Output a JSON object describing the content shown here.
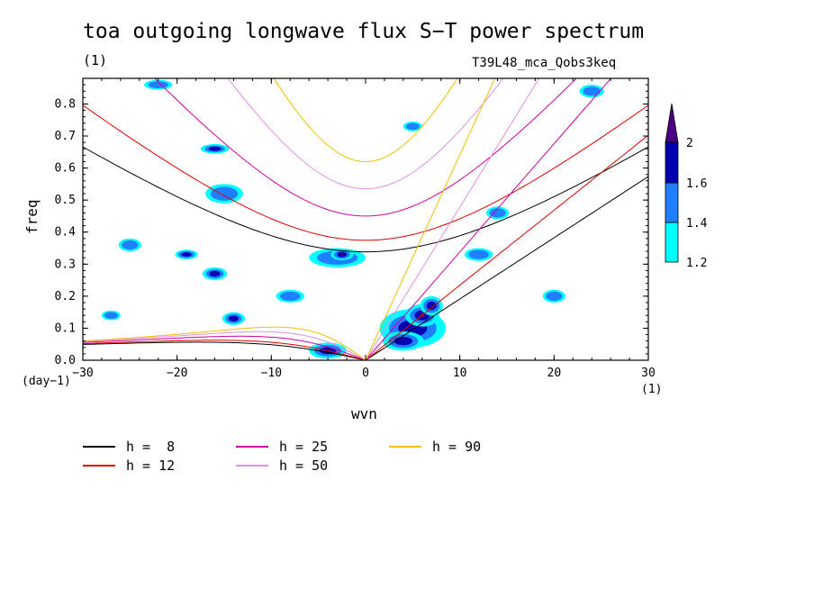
{
  "title": "toa outgoing longwave flux S−T power spectrum",
  "unit_label": "(1)",
  "run_label": "T39L48_mca_Qobs3keq",
  "y_unit_label": "(day−1)",
  "x_unit_label": "(1)",
  "chart_data": {
    "type": "heatmap",
    "xlabel": "wvn",
    "ylabel": "freq",
    "xlim": [
      -30,
      30
    ],
    "ylim": [
      0,
      0.88
    ],
    "xticks": [
      -30,
      -20,
      -10,
      0,
      10,
      20,
      30
    ],
    "xtick_labels": [
      "−30",
      "−20",
      "−10",
      "0",
      "10",
      "20",
      "30"
    ],
    "yticks": [
      0,
      0.1,
      0.2,
      0.3,
      0.4,
      0.5,
      0.6,
      0.7,
      0.8
    ],
    "ytick_labels": [
      "0.0",
      "0.1",
      "0.2",
      "0.3",
      "0.4",
      "0.5",
      "0.6",
      "0.7",
      "0.8"
    ],
    "colorbar": {
      "levels": [
        1.2,
        1.4,
        1.6,
        2
      ],
      "level_labels": [
        "1.2",
        "1.4",
        "1.6",
        "2"
      ],
      "colors": [
        "#00ffff",
        "#1f7fff",
        "#0000b0",
        "#4b0082"
      ]
    },
    "dispersion_curves": [
      {
        "name": "h =  8",
        "h": 8,
        "color": "#000000"
      },
      {
        "name": "h = 12",
        "h": 12,
        "color": "#e00000"
      },
      {
        "name": "h = 25",
        "h": 25,
        "color": "#d000a0"
      },
      {
        "name": "h = 50",
        "h": 50,
        "color": "#e090e0"
      },
      {
        "name": "h = 90",
        "h": 90,
        "color": "#f0c000"
      }
    ],
    "blobs": [
      {
        "x": 5,
        "y": 0.1,
        "rx": 3.5,
        "ry": 0.06,
        "level": 2
      },
      {
        "x": 6,
        "y": 0.14,
        "rx": 1.8,
        "ry": 0.035,
        "level": 3
      },
      {
        "x": 4,
        "y": 0.06,
        "rx": 2.2,
        "ry": 0.03,
        "level": 2
      },
      {
        "x": 7,
        "y": 0.17,
        "rx": 1.2,
        "ry": 0.03,
        "level": 2
      },
      {
        "x": -3,
        "y": 0.32,
        "rx": 3,
        "ry": 0.03,
        "level": 1
      },
      {
        "x": -2.5,
        "y": 0.33,
        "rx": 1.2,
        "ry": 0.018,
        "level": 3
      },
      {
        "x": -16,
        "y": 0.66,
        "rx": 1.5,
        "ry": 0.015,
        "level": 2
      },
      {
        "x": -15,
        "y": 0.52,
        "rx": 2,
        "ry": 0.03,
        "level": 1
      },
      {
        "x": -19,
        "y": 0.33,
        "rx": 1.2,
        "ry": 0.015,
        "level": 2
      },
      {
        "x": -16,
        "y": 0.27,
        "rx": 1.3,
        "ry": 0.02,
        "level": 2
      },
      {
        "x": -14,
        "y": 0.13,
        "rx": 1.2,
        "ry": 0.02,
        "level": 2
      },
      {
        "x": -4,
        "y": 0.03,
        "rx": 2,
        "ry": 0.025,
        "level": 2
      },
      {
        "x": 5,
        "y": 0.73,
        "rx": 1,
        "ry": 0.015,
        "level": 1
      },
      {
        "x": -25,
        "y": 0.36,
        "rx": 1.2,
        "ry": 0.02,
        "level": 1
      },
      {
        "x": 12,
        "y": 0.33,
        "rx": 1.5,
        "ry": 0.02,
        "level": 1
      },
      {
        "x": -22,
        "y": 0.86,
        "rx": 1.5,
        "ry": 0.015,
        "level": 1
      },
      {
        "x": 14,
        "y": 0.46,
        "rx": 1.2,
        "ry": 0.02,
        "level": 1
      },
      {
        "x": -8,
        "y": 0.2,
        "rx": 1.5,
        "ry": 0.02,
        "level": 1
      },
      {
        "x": 20,
        "y": 0.2,
        "rx": 1.2,
        "ry": 0.02,
        "level": 1
      },
      {
        "x": -27,
        "y": 0.14,
        "rx": 1,
        "ry": 0.015,
        "level": 1
      },
      {
        "x": 24,
        "y": 0.84,
        "rx": 1.3,
        "ry": 0.02,
        "level": 1
      }
    ]
  }
}
